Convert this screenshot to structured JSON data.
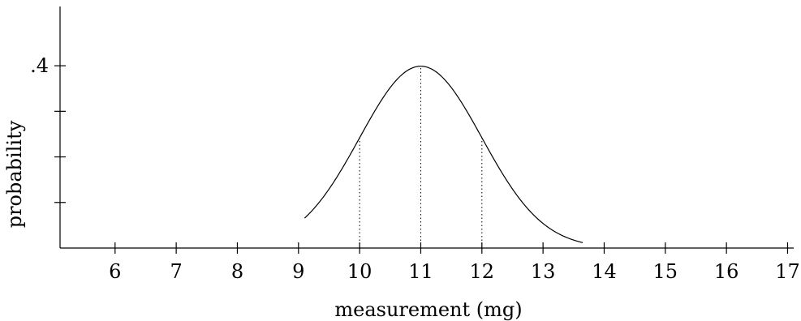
{
  "chart_data": {
    "type": "line",
    "title": "",
    "xlabel": "measurement (mg)",
    "ylabel": "probability",
    "x_ticks": [
      6,
      7,
      8,
      9,
      10,
      11,
      12,
      13,
      14,
      15,
      16,
      17
    ],
    "y_ticks": [
      0.1,
      0.2,
      0.3,
      0.4
    ],
    "y_tick_labels": {
      "0.4": ".4"
    },
    "xlim": [
      5.1,
      17.1
    ],
    "ylim": [
      0,
      0.53
    ],
    "series": [
      {
        "distribution": "normal",
        "mean": 11,
        "sd": 1,
        "x_range": [
          9.1,
          13.65
        ],
        "peak": 0.4
      }
    ],
    "reference_lines_at_x": [
      10,
      11,
      12
    ],
    "grid": false,
    "legend": "none"
  }
}
